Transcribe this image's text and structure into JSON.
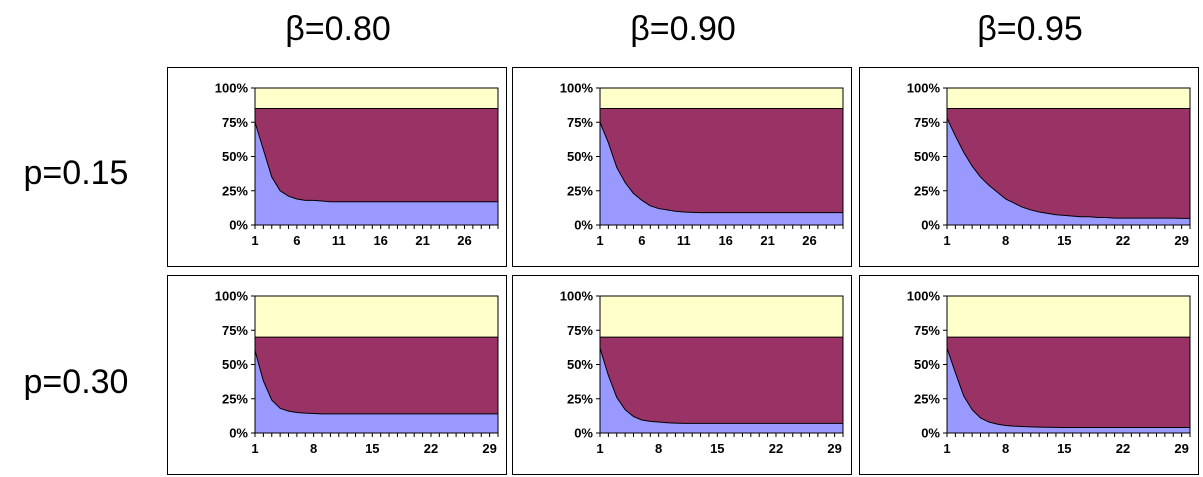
{
  "figure": {
    "column_labels": [
      "β=0.80",
      "β=0.90",
      "β=0.95"
    ],
    "row_labels": [
      "p=0.15",
      "p=0.30"
    ],
    "colors": {
      "bottom": "#9999FF",
      "middle": "#993366",
      "top": "#FFFFCC",
      "line": "#000000",
      "border": "#000000"
    }
  },
  "chart_data": [
    {
      "type": "area",
      "stacked": true,
      "row": "p=0.15",
      "column": "β=0.80",
      "x_count": 30,
      "x_tick_labels": [
        "1",
        "6",
        "11",
        "16",
        "21",
        "26"
      ],
      "y_tick_labels": [
        "0%",
        "25%",
        "50%",
        "75%",
        "100%"
      ],
      "ylim": [
        0,
        100
      ],
      "series": [
        {
          "values": [
            75,
            55,
            35,
            25,
            21,
            19,
            18,
            18,
            17.5,
            17,
            17,
            17,
            17,
            17,
            17,
            17,
            17,
            17,
            17,
            17,
            17,
            17,
            17,
            17,
            17,
            17,
            17,
            17,
            17,
            17
          ]
        },
        {
          "cumulative": [
            85,
            85,
            85,
            85,
            85,
            85,
            85,
            85,
            85,
            85,
            85,
            85,
            85,
            85,
            85,
            85,
            85,
            85,
            85,
            85,
            85,
            85,
            85,
            85,
            85,
            85,
            85,
            85,
            85,
            85
          ]
        },
        {
          "cumulative": [
            100,
            100,
            100,
            100,
            100,
            100,
            100,
            100,
            100,
            100,
            100,
            100,
            100,
            100,
            100,
            100,
            100,
            100,
            100,
            100,
            100,
            100,
            100,
            100,
            100,
            100,
            100,
            100,
            100,
            100
          ]
        }
      ]
    },
    {
      "type": "area",
      "stacked": true,
      "row": "p=0.15",
      "column": "β=0.90",
      "x_count": 30,
      "x_tick_labels": [
        "1",
        "6",
        "11",
        "16",
        "21",
        "26"
      ],
      "y_tick_labels": [
        "0%",
        "25%",
        "50%",
        "75%",
        "100%"
      ],
      "ylim": [
        0,
        100
      ],
      "series": [
        {
          "values": [
            75,
            60,
            42,
            31,
            23,
            18,
            14,
            12,
            11,
            10,
            9.5,
            9.2,
            9,
            9,
            9,
            9,
            9,
            9,
            9,
            9,
            9,
            9,
            9,
            9,
            9,
            9,
            9,
            9,
            9,
            9
          ]
        },
        {
          "cumulative": [
            85,
            85,
            85,
            85,
            85,
            85,
            85,
            85,
            85,
            85,
            85,
            85,
            85,
            85,
            85,
            85,
            85,
            85,
            85,
            85,
            85,
            85,
            85,
            85,
            85,
            85,
            85,
            85,
            85,
            85
          ]
        },
        {
          "cumulative": [
            100,
            100,
            100,
            100,
            100,
            100,
            100,
            100,
            100,
            100,
            100,
            100,
            100,
            100,
            100,
            100,
            100,
            100,
            100,
            100,
            100,
            100,
            100,
            100,
            100,
            100,
            100,
            100,
            100,
            100
          ]
        }
      ]
    },
    {
      "type": "area",
      "stacked": true,
      "row": "p=0.15",
      "column": "β=0.95",
      "x_count": 30,
      "x_tick_labels": [
        "1",
        "8",
        "15",
        "22",
        "29"
      ],
      "y_tick_labels": [
        "0%",
        "25%",
        "50%",
        "75%",
        "100%"
      ],
      "ylim": [
        0,
        100
      ],
      "series": [
        {
          "values": [
            78,
            65,
            53,
            43,
            35,
            29,
            24,
            19,
            16,
            13,
            11,
            9.5,
            8.5,
            7.5,
            7,
            6.5,
            6,
            6,
            5.5,
            5.5,
            5,
            5,
            5,
            5,
            5,
            5,
            5,
            5,
            4.8,
            4.8
          ]
        },
        {
          "cumulative": [
            85,
            85,
            85,
            85,
            85,
            85,
            85,
            85,
            85,
            85,
            85,
            85,
            85,
            85,
            85,
            85,
            85,
            85,
            85,
            85,
            85,
            85,
            85,
            85,
            85,
            85,
            85,
            85,
            85,
            85
          ]
        },
        {
          "cumulative": [
            100,
            100,
            100,
            100,
            100,
            100,
            100,
            100,
            100,
            100,
            100,
            100,
            100,
            100,
            100,
            100,
            100,
            100,
            100,
            100,
            100,
            100,
            100,
            100,
            100,
            100,
            100,
            100,
            100,
            100
          ]
        }
      ]
    },
    {
      "type": "area",
      "stacked": true,
      "row": "p=0.30",
      "column": "β=0.80",
      "x_count": 30,
      "x_tick_labels": [
        "1",
        "8",
        "15",
        "22",
        "29"
      ],
      "y_tick_labels": [
        "0%",
        "25%",
        "50%",
        "75%",
        "100%"
      ],
      "ylim": [
        0,
        100
      ],
      "series": [
        {
          "values": [
            60,
            38,
            24,
            18,
            16,
            15,
            14.5,
            14.2,
            14,
            14,
            14,
            14,
            14,
            14,
            14,
            14,
            14,
            14,
            14,
            14,
            14,
            14,
            14,
            14,
            14,
            14,
            14,
            14,
            14,
            14
          ]
        },
        {
          "cumulative": [
            70,
            70,
            70,
            70,
            70,
            70,
            70,
            70,
            70,
            70,
            70,
            70,
            70,
            70,
            70,
            70,
            70,
            70,
            70,
            70,
            70,
            70,
            70,
            70,
            70,
            70,
            70,
            70,
            70,
            70
          ]
        },
        {
          "cumulative": [
            100,
            100,
            100,
            100,
            100,
            100,
            100,
            100,
            100,
            100,
            100,
            100,
            100,
            100,
            100,
            100,
            100,
            100,
            100,
            100,
            100,
            100,
            100,
            100,
            100,
            100,
            100,
            100,
            100,
            100
          ]
        }
      ]
    },
    {
      "type": "area",
      "stacked": true,
      "row": "p=0.30",
      "column": "β=0.90",
      "x_count": 30,
      "x_tick_labels": [
        "1",
        "8",
        "15",
        "22",
        "29"
      ],
      "y_tick_labels": [
        "0%",
        "25%",
        "50%",
        "75%",
        "100%"
      ],
      "ylim": [
        0,
        100
      ],
      "series": [
        {
          "values": [
            62,
            42,
            26,
            17,
            12,
            9.5,
            8.5,
            8,
            7.5,
            7.2,
            7,
            7,
            7,
            7,
            7,
            7,
            7,
            7,
            7,
            7,
            7,
            7,
            7,
            7,
            7,
            7,
            7,
            7,
            7,
            7
          ]
        },
        {
          "cumulative": [
            70,
            70,
            70,
            70,
            70,
            70,
            70,
            70,
            70,
            70,
            70,
            70,
            70,
            70,
            70,
            70,
            70,
            70,
            70,
            70,
            70,
            70,
            70,
            70,
            70,
            70,
            70,
            70,
            70,
            70
          ]
        },
        {
          "cumulative": [
            100,
            100,
            100,
            100,
            100,
            100,
            100,
            100,
            100,
            100,
            100,
            100,
            100,
            100,
            100,
            100,
            100,
            100,
            100,
            100,
            100,
            100,
            100,
            100,
            100,
            100,
            100,
            100,
            100,
            100
          ]
        }
      ]
    },
    {
      "type": "area",
      "stacked": true,
      "row": "p=0.30",
      "column": "β=0.95",
      "x_count": 30,
      "x_tick_labels": [
        "1",
        "8",
        "15",
        "22",
        "29"
      ],
      "y_tick_labels": [
        "0%",
        "25%",
        "50%",
        "75%",
        "100%"
      ],
      "ylim": [
        0,
        100
      ],
      "series": [
        {
          "values": [
            62,
            44,
            27,
            17,
            11,
            8,
            6.5,
            5.5,
            5,
            4.7,
            4.5,
            4.3,
            4.2,
            4.1,
            4,
            4,
            4,
            4,
            4,
            4,
            4,
            4,
            4,
            4,
            4,
            4,
            4,
            4,
            4,
            4
          ]
        },
        {
          "cumulative": [
            70,
            70,
            70,
            70,
            70,
            70,
            70,
            70,
            70,
            70,
            70,
            70,
            70,
            70,
            70,
            70,
            70,
            70,
            70,
            70,
            70,
            70,
            70,
            70,
            70,
            70,
            70,
            70,
            70,
            70
          ]
        },
        {
          "cumulative": [
            100,
            100,
            100,
            100,
            100,
            100,
            100,
            100,
            100,
            100,
            100,
            100,
            100,
            100,
            100,
            100,
            100,
            100,
            100,
            100,
            100,
            100,
            100,
            100,
            100,
            100,
            100,
            100,
            100,
            100
          ]
        }
      ]
    }
  ]
}
